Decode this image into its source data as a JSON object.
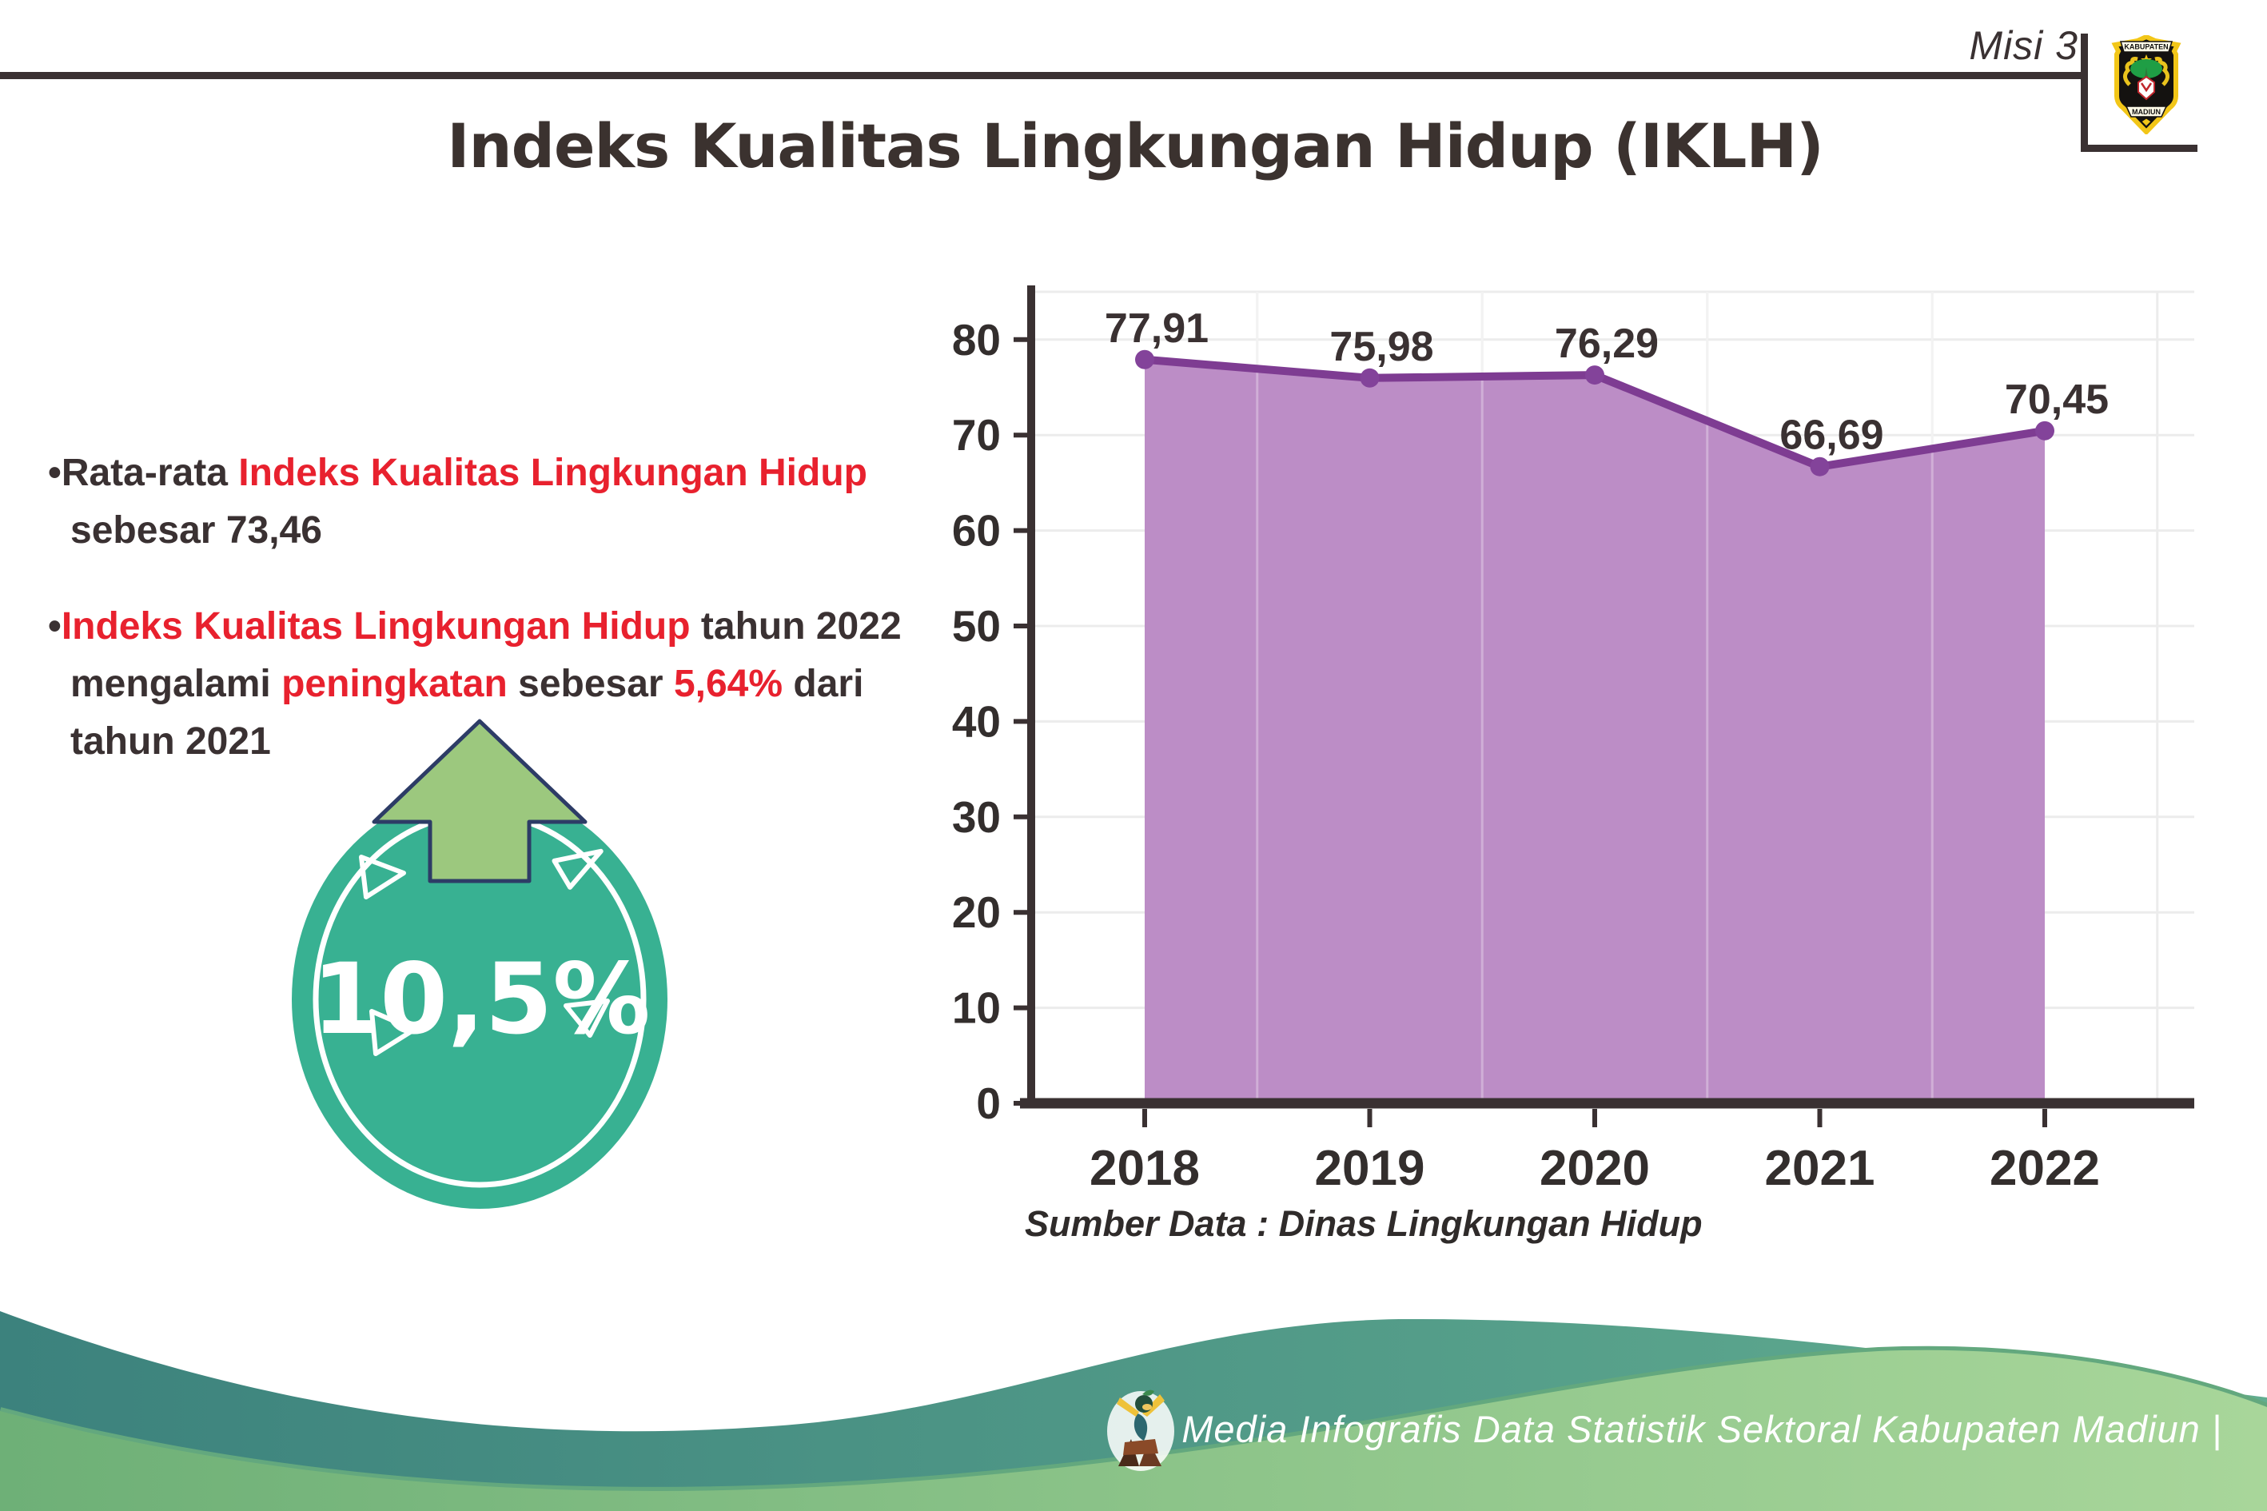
{
  "page": {
    "misi_label": "Misi 3",
    "title": "Indeks Kualitas Lingkungan Hidup (IKLH)"
  },
  "logo": {
    "top_text": "KABUPATEN",
    "bottom_text": "MADIUN"
  },
  "bullets": {
    "bullet_char": "•",
    "p1_s1": "Rata-rata ",
    "p1_s2_red": "Indeks Kualitas Lingkungan Hidup",
    "p1_line2": "sebesar 73,46",
    "p2_s1_red": "Indeks Kualitas Lingkungan Hidup",
    "p2_s2": " tahun 2022",
    "p2_l2_d1": "mengalami ",
    "p2_l2_r1": "peningkatan",
    "p2_l2_d2": " sebesar ",
    "p2_l2_r2": "5,64%",
    "p2_l2_d3": " dari",
    "p2_line3": "tahun 2021"
  },
  "badge": {
    "value": "10,5%"
  },
  "chart_data": {
    "type": "area",
    "title": "",
    "categories": [
      "2018",
      "2019",
      "2020",
      "2021",
      "2022"
    ],
    "values": [
      77.91,
      75.98,
      76.29,
      66.69,
      70.45
    ],
    "value_labels": [
      "77,91",
      "75,98",
      "76,29",
      "66,69",
      "70,45"
    ],
    "yticks": [
      0,
      10,
      20,
      30,
      40,
      50,
      60,
      70,
      80
    ],
    "ylim": [
      0,
      85
    ],
    "grid": true,
    "legend": "none",
    "source": "Sumber Data : Dinas Lingkungan Hidup",
    "colors": {
      "line": "#7e3c92",
      "fill": "#bc8dc6",
      "marker": "#83439a",
      "axis": "#3a3132",
      "grid": "#ececec",
      "label": "#3a3132"
    }
  },
  "footer": {
    "text": "Media Infografis Data Statistik Sektoral Kabupaten Madiun |"
  },
  "theme": {
    "accent_red": "#e8212e",
    "badge_teal": "#38b192",
    "arrow_green": "#9cc87e",
    "wave_teal": "#4a938b",
    "wave_green": "#8bc487"
  }
}
